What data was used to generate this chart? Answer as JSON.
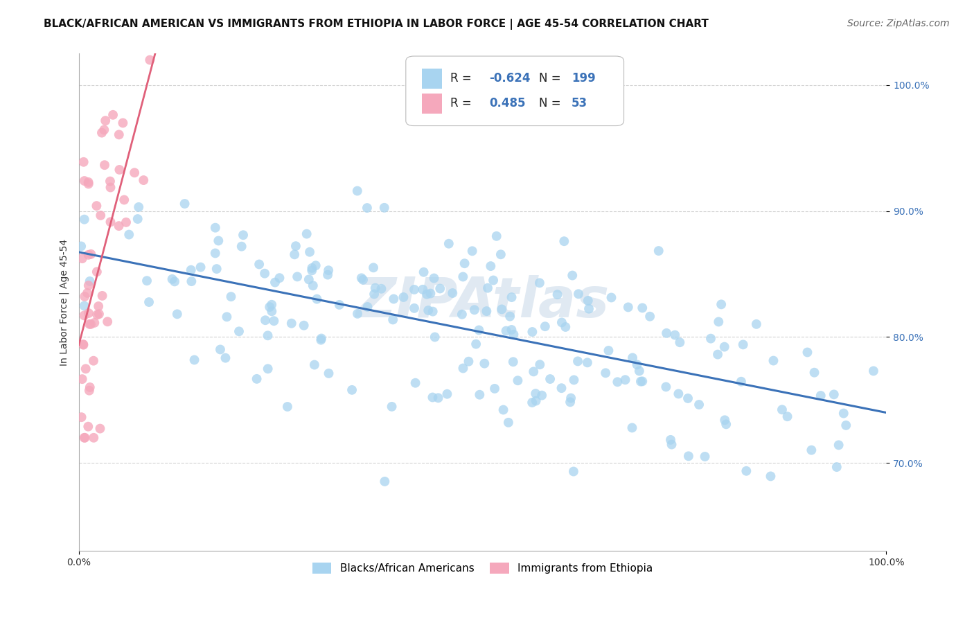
{
  "title": "BLACK/AFRICAN AMERICAN VS IMMIGRANTS FROM ETHIOPIA IN LABOR FORCE | AGE 45-54 CORRELATION CHART",
  "source": "Source: ZipAtlas.com",
  "ylabel": "In Labor Force | Age 45-54",
  "y_tick_labels": [
    "70.0%",
    "80.0%",
    "90.0%",
    "100.0%"
  ],
  "y_tick_positions": [
    0.7,
    0.8,
    0.9,
    1.0
  ],
  "x_min": 0.0,
  "x_max": 1.0,
  "y_min": 0.63,
  "y_max": 1.025,
  "blue_R": -0.624,
  "blue_N": 199,
  "pink_R": 0.485,
  "pink_N": 53,
  "blue_color": "#A8D4F0",
  "pink_color": "#F5A8BC",
  "blue_line_color": "#3B72B8",
  "pink_line_color": "#E0607A",
  "legend_label_blue": "Blacks/African Americans",
  "legend_label_pink": "Immigrants from Ethiopia",
  "watermark": "ZIPAtlas",
  "background_color": "#FFFFFF",
  "title_fontsize": 11,
  "axis_label_fontsize": 10,
  "legend_fontsize": 12,
  "source_fontsize": 10,
  "blue_seed": 42,
  "pink_seed": 99
}
